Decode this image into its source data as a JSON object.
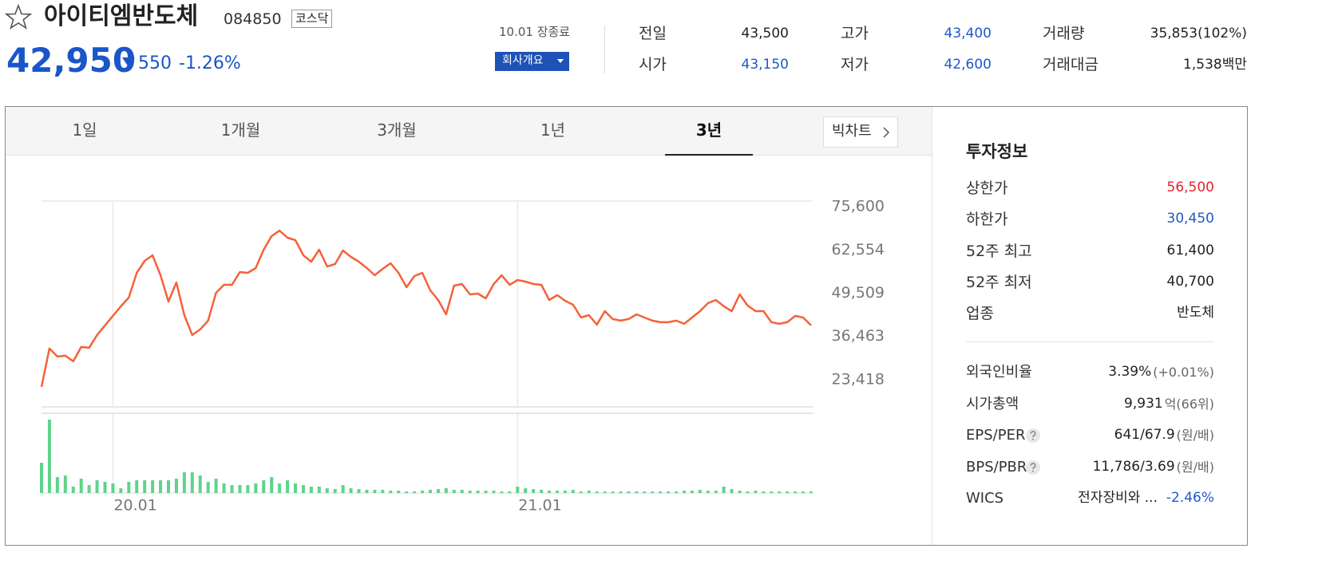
{
  "header": {
    "name": "아이티엠반도체",
    "code": "084850",
    "market": "코스닥",
    "price": "42,950",
    "change": "550",
    "change_rate": "-1.26%",
    "status": "10.01 장종료",
    "company_button": "회사개요"
  },
  "stats": [
    {
      "label": "전일",
      "value": "43,500"
    },
    {
      "label": "고가",
      "value": "43,400"
    },
    {
      "label": "거래량",
      "value": "35,853(102%)"
    },
    {
      "label": "시가",
      "value": "43,150"
    },
    {
      "label": "저가",
      "value": "42,600"
    },
    {
      "label": "거래대금",
      "value": "1,538백만"
    }
  ],
  "tabs": [
    "1일",
    "1개월",
    "3개월",
    "1년",
    "3년"
  ],
  "big_chart": "빅차트",
  "chart_data": [
    {
      "type": "line",
      "color": "#f4623a",
      "categories": [
        null,
        null,
        null,
        null,
        null,
        null,
        null,
        null,
        null,
        "20.01",
        null,
        null,
        null,
        null,
        null,
        null,
        null,
        null,
        null,
        null,
        null,
        null,
        null,
        null,
        null,
        null,
        null,
        null,
        null,
        null,
        null,
        null,
        null,
        null,
        null,
        null,
        null,
        null,
        null,
        null,
        null,
        null,
        null,
        null,
        null,
        null,
        null,
        null,
        null,
        null,
        null,
        null,
        null,
        null,
        null,
        null,
        null,
        null,
        null,
        null,
        "21.01",
        null,
        null,
        null,
        null,
        null,
        null,
        null,
        null,
        null,
        null,
        null,
        null,
        null,
        null,
        null,
        null,
        null,
        null,
        null,
        null,
        null,
        null,
        null,
        null,
        null,
        null,
        null,
        null,
        null,
        null,
        null,
        null,
        null,
        null,
        null,
        null,
        null
      ],
      "values": [
        21250,
        32790,
        30390,
        30630,
        28940,
        33270,
        33030,
        36880,
        39770,
        42650,
        45540,
        48180,
        55640,
        59250,
        60930,
        54920,
        46980,
        52750,
        42890,
        36880,
        38560,
        41210,
        49630,
        52030,
        52030,
        55880,
        55640,
        57080,
        62610,
        66700,
        68380,
        66220,
        65500,
        60930,
        59010,
        62610,
        57560,
        58280,
        62370,
        60450,
        59010,
        57080,
        54920,
        56840,
        58520,
        55640,
        51310,
        54680,
        55640,
        50350,
        47460,
        43130,
        51790,
        52270,
        49150,
        49390,
        47940,
        52270,
        54920,
        52030,
        53470,
        52990,
        52270,
        52030,
        47460,
        48910,
        47220,
        46020,
        42170,
        42890,
        40000,
        44090,
        41690,
        41210,
        41690,
        43130,
        42170,
        41210,
        40730,
        40730,
        41210,
        40250,
        42170,
        44090,
        46500,
        47460,
        45540,
        44090,
        49150,
        45780,
        44090,
        44090,
        40730,
        40250,
        40730,
        42650,
        42170,
        39770
      ],
      "ylim": [
        15200,
        77300
      ],
      "yticks": [
        {
          "value": 75600,
          "label": "75,600"
        },
        {
          "value": 62554,
          "label": "62,554"
        },
        {
          "value": 49509,
          "label": "49,509"
        },
        {
          "value": 36463,
          "label": "36,463"
        },
        {
          "value": 23418,
          "label": "23,418"
        }
      ]
    },
    {
      "type": "bar",
      "color": "#5ed38b",
      "ylim": [
        0,
        100
      ],
      "values": [
        38,
        92,
        20,
        22,
        8,
        18,
        10,
        16,
        14,
        12,
        6,
        14,
        16,
        16,
        16,
        16,
        16,
        18,
        26,
        26,
        22,
        14,
        18,
        12,
        10,
        10,
        10,
        12,
        16,
        20,
        12,
        16,
        12,
        10,
        8,
        8,
        6,
        5,
        10,
        6,
        5,
        4,
        4,
        4,
        3,
        3,
        2,
        2,
        3,
        4,
        5,
        6,
        4,
        4,
        3,
        3,
        3,
        3,
        2,
        2,
        8,
        6,
        5,
        4,
        3,
        3,
        3,
        4,
        2,
        3,
        2,
        2,
        2,
        2,
        2,
        2,
        2,
        2,
        2,
        2,
        2,
        3,
        3,
        4,
        3,
        3,
        8,
        5,
        3,
        2,
        3,
        2,
        2,
        2,
        2,
        2,
        2,
        2
      ]
    }
  ],
  "invest": {
    "title": "투자정보",
    "rows": [
      {
        "label": "상한가",
        "value": "56,500"
      },
      {
        "label": "하한가",
        "value": "30,450"
      },
      {
        "label": "52주 최고",
        "value": "61,400"
      },
      {
        "label": "52주 최저",
        "value": "40,700"
      },
      {
        "label": "업종",
        "value": "반도체"
      }
    ],
    "rows2": [
      {
        "label": "외국인비율",
        "value": "3.39%",
        "unit": "(+0.01%)"
      },
      {
        "label": "시가총액",
        "value": "9,931",
        "unit": "억(66위)"
      },
      {
        "label": "EPS/PER",
        "value": "641/67.9",
        "unit": "(원/배)"
      },
      {
        "label": "BPS/PBR",
        "value": "11,786/3.69",
        "unit": "(원/배)"
      },
      {
        "label": "WICS",
        "value": "전자장비와 ...",
        "unit": "-2.46%"
      }
    ]
  }
}
